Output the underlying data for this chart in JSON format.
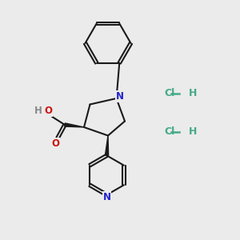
{
  "background_color": "#ebebeb",
  "fig_width": 3.0,
  "fig_height": 3.0,
  "dpi": 100,
  "bond_color": "#1a1a1a",
  "nitrogen_color": "#2222cc",
  "oxygen_color": "#cc1111",
  "hcl_color": "#44aa88",
  "ho_color": "#888888",
  "bond_width": 1.5,
  "font_size_atom": 8.5,
  "font_size_hcl": 9.0,
  "xlim": [
    0,
    10
  ],
  "ylim": [
    0,
    10
  ]
}
